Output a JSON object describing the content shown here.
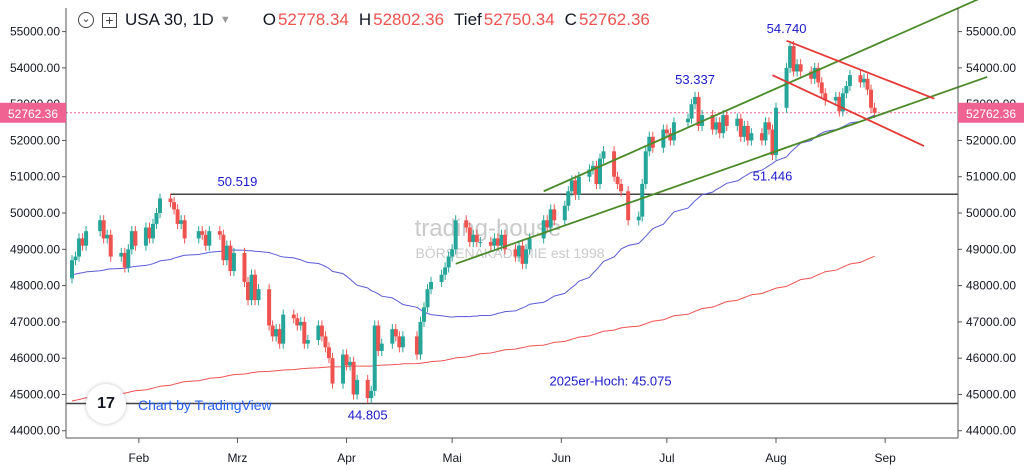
{
  "header": {
    "symbol": "USA 30, 1D",
    "open_label": "O",
    "open": "52778.34",
    "high_label": "H",
    "high": "52802.36",
    "low_label": "Tief",
    "low": "52750.34",
    "close_label": "C",
    "close": "52762.36"
  },
  "branding": {
    "logo_text": "17",
    "credit": "Chart by TradingView"
  },
  "colors": {
    "up": "#26a69a",
    "down": "#ef5350",
    "ma50": "#5b5bd6",
    "ma200": "#ef5350",
    "channel": "#4a8a2a",
    "downchannel": "#e53935",
    "level": "#444444",
    "pricetag": "#f06292"
  },
  "chart_data": {
    "type": "candlestick",
    "x": [
      "Feb",
      "Mrz",
      "Apr",
      "Mai",
      "Jun",
      "Jul",
      "Aug",
      "Sep"
    ],
    "y_ticks": [
      "55000.00",
      "54000.00",
      "53000.00",
      "52000.00",
      "51000.00",
      "50000.00",
      "49000.00",
      "48000.00",
      "47000.00",
      "46000.00",
      "45000.00",
      "44000.00"
    ],
    "ylim": [
      43800,
      55650
    ],
    "last_price": "52762.36",
    "annotations": [
      {
        "text": "54.740",
        "date": "2025-08-04",
        "value": 54740
      },
      {
        "text": "53.337",
        "date": "2025-07-09",
        "value": 53337
      },
      {
        "text": "51.446",
        "date": "2025-07-31",
        "value": 51446
      },
      {
        "text": "50.519",
        "date": "2025-03-01",
        "value": 50519
      },
      {
        "text": "44.805",
        "date": "2025-04-07",
        "value": 44805
      },
      {
        "text": "2025er-Hoch: 45.075",
        "date": "2025-06-15",
        "value": 45075
      }
    ],
    "horizontal_levels": [
      50519,
      44750
    ],
    "watermark": [
      "trading-house",
      "BÖRSENAKADEMIE est 1998"
    ],
    "candles": [
      {
        "d": "2025-01-13",
        "o": 48200,
        "c": 48700
      },
      {
        "d": "2025-01-14",
        "o": 48700,
        "c": 48800
      },
      {
        "d": "2025-01-15",
        "o": 48800,
        "c": 49300
      },
      {
        "d": "2025-01-16",
        "o": 49300,
        "c": 49100
      },
      {
        "d": "2025-01-17",
        "o": 49100,
        "c": 49500
      },
      {
        "d": "2025-01-21",
        "o": 49500,
        "c": 49800
      },
      {
        "d": "2025-01-22",
        "o": 49800,
        "c": 49300
      },
      {
        "d": "2025-01-23",
        "o": 49300,
        "c": 49400
      },
      {
        "d": "2025-01-24",
        "o": 49400,
        "c": 48800
      },
      {
        "d": "2025-01-27",
        "o": 48800,
        "c": 48900
      },
      {
        "d": "2025-01-28",
        "o": 48900,
        "c": 48500
      },
      {
        "d": "2025-01-29",
        "o": 48500,
        "c": 49000
      },
      {
        "d": "2025-01-30",
        "o": 49000,
        "c": 49500
      },
      {
        "d": "2025-01-31",
        "o": 49500,
        "c": 49100
      },
      {
        "d": "2025-02-03",
        "o": 49100,
        "c": 49600
      },
      {
        "d": "2025-02-04",
        "o": 49600,
        "c": 49300
      },
      {
        "d": "2025-02-05",
        "o": 49300,
        "c": 49700
      },
      {
        "d": "2025-02-06",
        "o": 49700,
        "c": 50000
      },
      {
        "d": "2025-02-07",
        "o": 50000,
        "c": 50400
      },
      {
        "d": "2025-02-10",
        "o": 50400,
        "c": 50300
      },
      {
        "d": "2025-02-11",
        "o": 50300,
        "c": 50100
      },
      {
        "d": "2025-02-12",
        "o": 50100,
        "c": 49700
      },
      {
        "d": "2025-02-13",
        "o": 49700,
        "c": 49800
      },
      {
        "d": "2025-02-14",
        "o": 49800,
        "c": 49300
      },
      {
        "d": "2025-02-18",
        "o": 49300,
        "c": 49500
      },
      {
        "d": "2025-02-19",
        "o": 49500,
        "c": 49400
      },
      {
        "d": "2025-02-20",
        "o": 49400,
        "c": 49100
      },
      {
        "d": "2025-02-21",
        "o": 49100,
        "c": 49500
      },
      {
        "d": "2025-02-24",
        "o": 49500,
        "c": 49400
      },
      {
        "d": "2025-02-25",
        "o": 49400,
        "c": 48700
      },
      {
        "d": "2025-02-26",
        "o": 48700,
        "c": 49100
      },
      {
        "d": "2025-02-27",
        "o": 49100,
        "c": 48400
      },
      {
        "d": "2025-02-28",
        "o": 48400,
        "c": 48900
      },
      {
        "d": "2025-03-03",
        "o": 48900,
        "c": 48100
      },
      {
        "d": "2025-03-04",
        "o": 48100,
        "c": 47600
      },
      {
        "d": "2025-03-05",
        "o": 47600,
        "c": 48300
      },
      {
        "d": "2025-03-06",
        "o": 48300,
        "c": 47600
      },
      {
        "d": "2025-03-07",
        "o": 47600,
        "c": 47900
      },
      {
        "d": "2025-03-10",
        "o": 47900,
        "c": 46900
      },
      {
        "d": "2025-03-11",
        "o": 46900,
        "c": 46600
      },
      {
        "d": "2025-03-12",
        "o": 46600,
        "c": 46800
      },
      {
        "d": "2025-03-13",
        "o": 46800,
        "c": 46400
      },
      {
        "d": "2025-03-14",
        "o": 46400,
        "c": 47200
      },
      {
        "d": "2025-03-17",
        "o": 47200,
        "c": 47100
      },
      {
        "d": "2025-03-18",
        "o": 47100,
        "c": 46900
      },
      {
        "d": "2025-03-19",
        "o": 46900,
        "c": 47000
      },
      {
        "d": "2025-03-20",
        "o": 47000,
        "c": 46400
      },
      {
        "d": "2025-03-21",
        "o": 46400,
        "c": 46500
      },
      {
        "d": "2025-03-24",
        "o": 46500,
        "c": 46900
      },
      {
        "d": "2025-03-25",
        "o": 46900,
        "c": 46600
      },
      {
        "d": "2025-03-26",
        "o": 46600,
        "c": 46300
      },
      {
        "d": "2025-03-27",
        "o": 46300,
        "c": 46000
      },
      {
        "d": "2025-03-28",
        "o": 46000,
        "c": 45300
      },
      {
        "d": "2025-03-31",
        "o": 45300,
        "c": 46100
      },
      {
        "d": "2025-04-01",
        "o": 46100,
        "c": 45800
      },
      {
        "d": "2025-04-02",
        "o": 45800,
        "c": 45900
      },
      {
        "d": "2025-04-03",
        "o": 45900,
        "c": 45000
      },
      {
        "d": "2025-04-04",
        "o": 45000,
        "c": 45400
      },
      {
        "d": "2025-04-07",
        "o": 45400,
        "c": 44900
      },
      {
        "d": "2025-04-08",
        "o": 44900,
        "c": 45100
      },
      {
        "d": "2025-04-09",
        "o": 45100,
        "c": 46900
      },
      {
        "d": "2025-04-10",
        "o": 46900,
        "c": 46200
      },
      {
        "d": "2025-04-11",
        "o": 46200,
        "c": 46400
      },
      {
        "d": "2025-04-14",
        "o": 46400,
        "c": 46800
      },
      {
        "d": "2025-04-15",
        "o": 46800,
        "c": 46600
      },
      {
        "d": "2025-04-16",
        "o": 46600,
        "c": 46300
      },
      {
        "d": "2025-04-17",
        "o": 46300,
        "c": 46600
      },
      {
        "d": "2025-04-21",
        "o": 46600,
        "c": 46100
      },
      {
        "d": "2025-04-22",
        "o": 46100,
        "c": 47000
      },
      {
        "d": "2025-04-23",
        "o": 47000,
        "c": 47400
      },
      {
        "d": "2025-04-24",
        "o": 47400,
        "c": 47900
      },
      {
        "d": "2025-04-25",
        "o": 47900,
        "c": 48100
      },
      {
        "d": "2025-04-28",
        "o": 48100,
        "c": 48300
      },
      {
        "d": "2025-04-29",
        "o": 48300,
        "c": 48500
      },
      {
        "d": "2025-04-30",
        "o": 48500,
        "c": 48800
      },
      {
        "d": "2025-05-01",
        "o": 48800,
        "c": 49000
      },
      {
        "d": "2025-05-02",
        "o": 49000,
        "c": 49800
      },
      {
        "d": "2025-05-05",
        "o": 49800,
        "c": 49600
      },
      {
        "d": "2025-05-06",
        "o": 49600,
        "c": 49200
      },
      {
        "d": "2025-05-07",
        "o": 49200,
        "c": 49400
      },
      {
        "d": "2025-05-08",
        "o": 49400,
        "c": 49200
      },
      {
        "d": "2025-05-09",
        "o": 49200,
        "c": 49200
      },
      {
        "d": "2025-05-12",
        "o": 49200,
        "c": 49100
      },
      {
        "d": "2025-05-13",
        "o": 49100,
        "c": 49300
      },
      {
        "d": "2025-05-14",
        "o": 49300,
        "c": 49100
      },
      {
        "d": "2025-05-15",
        "o": 49100,
        "c": 49400
      },
      {
        "d": "2025-05-16",
        "o": 49400,
        "c": 49000
      },
      {
        "d": "2025-05-19",
        "o": 49000,
        "c": 48800
      },
      {
        "d": "2025-05-20",
        "o": 48800,
        "c": 49100
      },
      {
        "d": "2025-05-21",
        "o": 49100,
        "c": 48600
      },
      {
        "d": "2025-05-22",
        "o": 48600,
        "c": 49000
      },
      {
        "d": "2025-05-23",
        "o": 49000,
        "c": 49300
      },
      {
        "d": "2025-05-27",
        "o": 49300,
        "c": 49800
      },
      {
        "d": "2025-05-28",
        "o": 49800,
        "c": 49600
      },
      {
        "d": "2025-05-29",
        "o": 49600,
        "c": 50100
      },
      {
        "d": "2025-05-30",
        "o": 50100,
        "c": 49800
      },
      {
        "d": "2025-06-02",
        "o": 49800,
        "c": 50200
      },
      {
        "d": "2025-06-03",
        "o": 50200,
        "c": 50600
      },
      {
        "d": "2025-06-04",
        "o": 50600,
        "c": 50900
      },
      {
        "d": "2025-06-05",
        "o": 50900,
        "c": 50500
      },
      {
        "d": "2025-06-06",
        "o": 50500,
        "c": 51000
      },
      {
        "d": "2025-06-09",
        "o": 51000,
        "c": 51200
      },
      {
        "d": "2025-06-10",
        "o": 51200,
        "c": 51300
      },
      {
        "d": "2025-06-11",
        "o": 51300,
        "c": 50800
      },
      {
        "d": "2025-06-12",
        "o": 50800,
        "c": 51500
      },
      {
        "d": "2025-06-13",
        "o": 51500,
        "c": 51700
      },
      {
        "d": "2025-06-16",
        "o": 51700,
        "c": 51000
      },
      {
        "d": "2025-06-17",
        "o": 51000,
        "c": 50800
      },
      {
        "d": "2025-06-18",
        "o": 50800,
        "c": 50600
      },
      {
        "d": "2025-06-20",
        "o": 50600,
        "c": 49800
      },
      {
        "d": "2025-06-23",
        "o": 49800,
        "c": 49900
      },
      {
        "d": "2025-06-24",
        "o": 49900,
        "c": 50800
      },
      {
        "d": "2025-06-25",
        "o": 50800,
        "c": 51700
      },
      {
        "d": "2025-06-26",
        "o": 51700,
        "c": 52100
      },
      {
        "d": "2025-06-27",
        "o": 52100,
        "c": 51800
      },
      {
        "d": "2025-06-30",
        "o": 51800,
        "c": 52300
      },
      {
        "d": "2025-07-01",
        "o": 52300,
        "c": 52200
      },
      {
        "d": "2025-07-02",
        "o": 52200,
        "c": 52000
      },
      {
        "d": "2025-07-03",
        "o": 52000,
        "c": 52500
      },
      {
        "d": "2025-07-07",
        "o": 52500,
        "c": 52600
      },
      {
        "d": "2025-07-08",
        "o": 52600,
        "c": 53000
      },
      {
        "d": "2025-07-09",
        "o": 53000,
        "c": 53200
      },
      {
        "d": "2025-07-10",
        "o": 53200,
        "c": 52400
      },
      {
        "d": "2025-07-11",
        "o": 52400,
        "c": 52700
      },
      {
        "d": "2025-07-14",
        "o": 52700,
        "c": 52300
      },
      {
        "d": "2025-07-15",
        "o": 52300,
        "c": 52500
      },
      {
        "d": "2025-07-16",
        "o": 52500,
        "c": 52200
      },
      {
        "d": "2025-07-17",
        "o": 52200,
        "c": 52700
      },
      {
        "d": "2025-07-18",
        "o": 52700,
        "c": 52400
      },
      {
        "d": "2025-07-21",
        "o": 52400,
        "c": 52600
      },
      {
        "d": "2025-07-22",
        "o": 52600,
        "c": 52100
      },
      {
        "d": "2025-07-23",
        "o": 52100,
        "c": 52400
      },
      {
        "d": "2025-07-24",
        "o": 52400,
        "c": 52000
      },
      {
        "d": "2025-07-25",
        "o": 52000,
        "c": 52200
      },
      {
        "d": "2025-07-28",
        "o": 52200,
        "c": 52000
      },
      {
        "d": "2025-07-29",
        "o": 52000,
        "c": 52500
      },
      {
        "d": "2025-07-30",
        "o": 52500,
        "c": 52300
      },
      {
        "d": "2025-07-31",
        "o": 52300,
        "c": 51600
      },
      {
        "d": "2025-08-01",
        "o": 51600,
        "c": 52900
      },
      {
        "d": "2025-08-04",
        "o": 52900,
        "c": 54000
      },
      {
        "d": "2025-08-05",
        "o": 54000,
        "c": 54600
      },
      {
        "d": "2025-08-06",
        "o": 54600,
        "c": 53900
      },
      {
        "d": "2025-08-07",
        "o": 53900,
        "c": 54100
      },
      {
        "d": "2025-08-08",
        "o": 54100,
        "c": 53900
      },
      {
        "d": "2025-08-11",
        "o": 53900,
        "c": 53700
      },
      {
        "d": "2025-08-12",
        "o": 53700,
        "c": 54000
      },
      {
        "d": "2025-08-13",
        "o": 54000,
        "c": 53600
      },
      {
        "d": "2025-08-14",
        "o": 53600,
        "c": 53300
      },
      {
        "d": "2025-08-15",
        "o": 53300,
        "c": 53100
      },
      {
        "d": "2025-08-18",
        "o": 53100,
        "c": 53200
      },
      {
        "d": "2025-08-19",
        "o": 53200,
        "c": 52800
      },
      {
        "d": "2025-08-20",
        "o": 52800,
        "c": 53300
      },
      {
        "d": "2025-08-21",
        "o": 53300,
        "c": 53500
      },
      {
        "d": "2025-08-22",
        "o": 53500,
        "c": 53800
      },
      {
        "d": "2025-08-25",
        "o": 53800,
        "c": 53600
      },
      {
        "d": "2025-08-26",
        "o": 53600,
        "c": 53700
      },
      {
        "d": "2025-08-27",
        "o": 53700,
        "c": 53400
      },
      {
        "d": "2025-08-28",
        "o": 53400,
        "c": 52900
      },
      {
        "d": "2025-08-29",
        "o": 52900,
        "c": 52762
      }
    ]
  }
}
